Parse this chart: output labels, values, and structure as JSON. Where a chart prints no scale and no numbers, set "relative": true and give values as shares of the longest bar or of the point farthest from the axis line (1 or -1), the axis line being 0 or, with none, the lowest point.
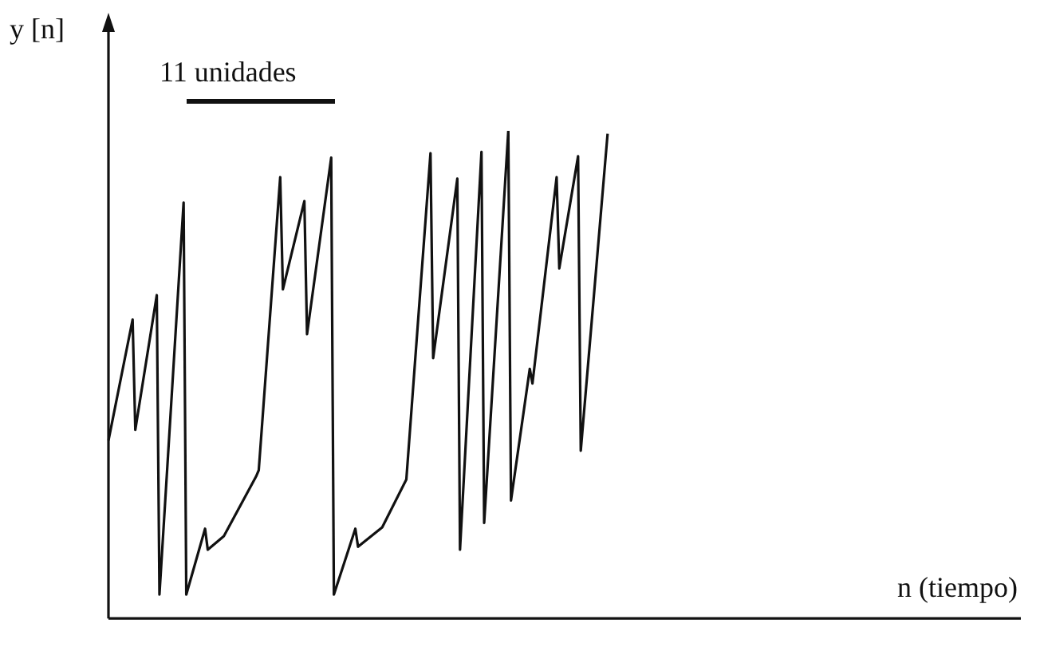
{
  "chart_data": {
    "type": "line",
    "relative": true,
    "xlabel": "n (tiempo)",
    "ylabel": "y [n]",
    "annotations": [
      "11 unidades"
    ],
    "marker": "none",
    "line_style": "solid",
    "categories": [
      null,
      null,
      null,
      null,
      null,
      null,
      null,
      null,
      null,
      null,
      null,
      null,
      null,
      null,
      null,
      null,
      null,
      null,
      null,
      null,
      null,
      null,
      null,
      null,
      null,
      null,
      null,
      null,
      null,
      null,
      null,
      null,
      null,
      null,
      null,
      null,
      null,
      null,
      null,
      null,
      null,
      null,
      null,
      null,
      null,
      null,
      null,
      null,
      null,
      null,
      null,
      null,
      null,
      null,
      null,
      null,
      null,
      null,
      null,
      null,
      null,
      null,
      null,
      null,
      null,
      null,
      null,
      null,
      null,
      null,
      null,
      null,
      null,
      null,
      null,
      null,
      null,
      null,
      null,
      null,
      null,
      null,
      null,
      null,
      null,
      null,
      null,
      null,
      null,
      null,
      null,
      null,
      null,
      null,
      null,
      null,
      null,
      null,
      null,
      null,
      null,
      null,
      null,
      null,
      null,
      null,
      null,
      null,
      null,
      null,
      null,
      null,
      null,
      null,
      null,
      null,
      null,
      null,
      null,
      null,
      null,
      null,
      null,
      null,
      null,
      null,
      null,
      null,
      null,
      null,
      null,
      null,
      null,
      null,
      null,
      null,
      null,
      null,
      null,
      null,
      null,
      null,
      null,
      null,
      null,
      null,
      null,
      null,
      null,
      null,
      null,
      null,
      null,
      null,
      null,
      null,
      null,
      null,
      null,
      null,
      null,
      null,
      null,
      null,
      null,
      null,
      null,
      null,
      null,
      null,
      null,
      null,
      null,
      null,
      null,
      null,
      null,
      null,
      null,
      null,
      null,
      null,
      null,
      null,
      null,
      null,
      null,
      null,
      null,
      null,
      null,
      null,
      null,
      null,
      null,
      null,
      null,
      null,
      null,
      null,
      null,
      null,
      null,
      null,
      null,
      null,
      null,
      null,
      null,
      null,
      null,
      null,
      null,
      null,
      null,
      null,
      null,
      null,
      null,
      null,
      null,
      null,
      null,
      null,
      null,
      null,
      null,
      null,
      null,
      null,
      null,
      null,
      null,
      null,
      null,
      null,
      null,
      null,
      null,
      null,
      null,
      null,
      null,
      null,
      null,
      null,
      null,
      null,
      null,
      null,
      null,
      null,
      null,
      null,
      null,
      null,
      null,
      null,
      null,
      null,
      null,
      null,
      null,
      null,
      null,
      null,
      null,
      null,
      null,
      null,
      null,
      null,
      null,
      null,
      null,
      null,
      null,
      null,
      null,
      null,
      null,
      null,
      null,
      null,
      null,
      null,
      null,
      null,
      null,
      null,
      null,
      null,
      null,
      null,
      null,
      null,
      null,
      null,
      null,
      null,
      null,
      null,
      null,
      null,
      null,
      null,
      null,
      null,
      null,
      null,
      null,
      null,
      null,
      null,
      null,
      null,
      null,
      null,
      null,
      null,
      null,
      null,
      null,
      null,
      null,
      null,
      null,
      null,
      null,
      null,
      null,
      null,
      null,
      null,
      null,
      null,
      null,
      null,
      null,
      null,
      null
    ],
    "series": [
      {
        "color": "#111111",
        "values": [
          0.365,
          null,
          null,
          null,
          null,
          null,
          null,
          null,
          null,
          0.613,
          0.387,
          null,
          null,
          null,
          null,
          null,
          null,
          null,
          0.663,
          0.049,
          null,
          null,
          null,
          null,
          null,
          null,
          null,
          null,
          0.853,
          0.049,
          null,
          null,
          null,
          null,
          null,
          null,
          0.184,
          0.141,
          null,
          null,
          null,
          null,
          null,
          0.169,
          null,
          null,
          null,
          null,
          null,
          null,
          null,
          null,
          null,
          null,
          null,
          0.291,
          0.304,
          null,
          null,
          null,
          null,
          null,
          null,
          null,
          0.905,
          0.675,
          null,
          null,
          null,
          null,
          null,
          null,
          null,
          0.856,
          0.583,
          null,
          null,
          null,
          null,
          null,
          null,
          null,
          null,
          0.945,
          0.049,
          null,
          null,
          null,
          null,
          null,
          null,
          null,
          0.184,
          0.147,
          null,
          null,
          null,
          null,
          null,
          null,
          null,
          null,
          0.187,
          null,
          null,
          null,
          null,
          null,
          null,
          null,
          null,
          0.285,
          null,
          null,
          null,
          null,
          null,
          null,
          null,
          null,
          0.954,
          0.534,
          null,
          null,
          null,
          null,
          null,
          null,
          null,
          null,
          0.902,
          0.141,
          null,
          null,
          null,
          null,
          null,
          null,
          null,
          0.957,
          0.196,
          null,
          null,
          null,
          null,
          null,
          null,
          null,
          null,
          1.0,
          0.242,
          null,
          null,
          null,
          null,
          null,
          null,
          0.512,
          0.482,
          null,
          null,
          null,
          null,
          null,
          null,
          null,
          null,
          0.905,
          0.718,
          null,
          null,
          null,
          null,
          null,
          null,
          0.948,
          0.344,
          null,
          null,
          null,
          null,
          null,
          null,
          null,
          null,
          null,
          0.994,
          null,
          null,
          null,
          null,
          null,
          null,
          null,
          null,
          null,
          null,
          null,
          null,
          null,
          null,
          null,
          null,
          null,
          null,
          null,
          null,
          null,
          null,
          null,
          null,
          null,
          null,
          null,
          null,
          null,
          null,
          null,
          null,
          null,
          null,
          null,
          null,
          null,
          null,
          null,
          null,
          null,
          null,
          null,
          null,
          null,
          null,
          null,
          null,
          null,
          null,
          null,
          null,
          null,
          null,
          null,
          null,
          null,
          null,
          null,
          null,
          null,
          null,
          null,
          null,
          null,
          null,
          null,
          null,
          null,
          null,
          null,
          null,
          null,
          null,
          null,
          null,
          null,
          null,
          null,
          null,
          null,
          null,
          null,
          null,
          null,
          null,
          null,
          null,
          null,
          null,
          null,
          null,
          null,
          null,
          null,
          null,
          null,
          null,
          null,
          null,
          null,
          null,
          null,
          null,
          null,
          null,
          null,
          null,
          null,
          null,
          null,
          null,
          null,
          null,
          null,
          null,
          null,
          null,
          null,
          null,
          null,
          null,
          null,
          null,
          null,
          null,
          null,
          null,
          null,
          null,
          null,
          null,
          null,
          null,
          null,
          null,
          null,
          null,
          null,
          null,
          null,
          null,
          null,
          null,
          null,
          null,
          null,
          null,
          null,
          null,
          null,
          null,
          null,
          null
        ]
      }
    ]
  }
}
